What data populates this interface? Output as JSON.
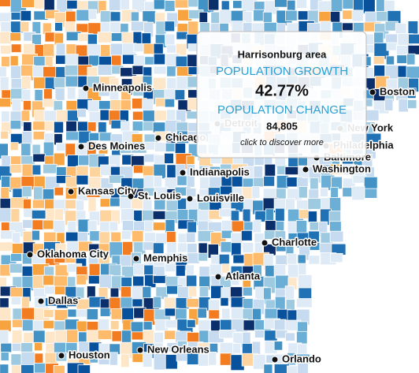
{
  "tooltip": {
    "title": "Harrisonburg area",
    "growth_label": "POPULATION GROWTH",
    "growth_value": "42.77%",
    "change_label": "POPULATION CHANGE",
    "change_value": "84,805",
    "hint": "click to discover more"
  },
  "cities": [
    "Minneapolis",
    "Boston",
    "Chicago",
    "Detroit",
    "New York",
    "Des Moines",
    "Philadelphia",
    "Baltimore",
    "Washington",
    "Indianapolis",
    "Kansas City",
    "St. Louis",
    "Louisville",
    "Charlotte",
    "Oklahoma City",
    "Memphis",
    "Atlanta",
    "Dallas",
    "Houston",
    "New Orleans",
    "Orlando"
  ]
}
